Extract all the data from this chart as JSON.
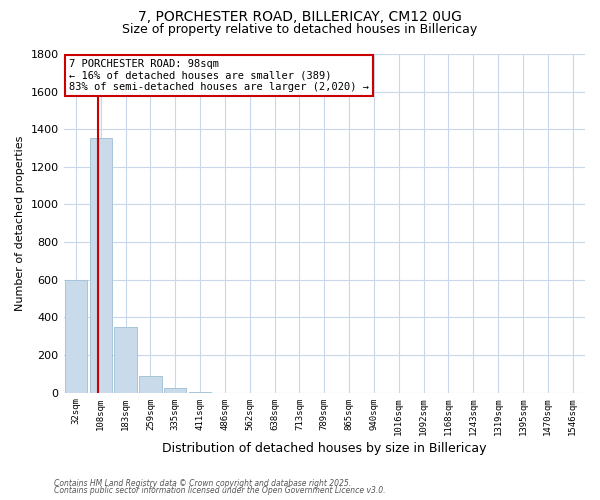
{
  "title_line1": "7, PORCHESTER ROAD, BILLERICAY, CM12 0UG",
  "title_line2": "Size of property relative to detached houses in Billericay",
  "xlabel": "Distribution of detached houses by size in Billericay",
  "ylabel": "Number of detached properties",
  "bar_labels": [
    "32sqm",
    "108sqm",
    "183sqm",
    "259sqm",
    "335sqm",
    "411sqm",
    "486sqm",
    "562sqm",
    "638sqm",
    "713sqm",
    "789sqm",
    "865sqm",
    "940sqm",
    "1016sqm",
    "1092sqm",
    "1168sqm",
    "1243sqm",
    "1319sqm",
    "1395sqm",
    "1470sqm",
    "1546sqm"
  ],
  "bar_values": [
    600,
    1355,
    350,
    90,
    25,
    5,
    0,
    0,
    0,
    0,
    0,
    0,
    0,
    0,
    0,
    0,
    0,
    0,
    0,
    0,
    0
  ],
  "bar_color": "#c9daea",
  "bar_edge_color": "#a8c4d8",
  "ylim": [
    0,
    1800
  ],
  "yticks": [
    0,
    200,
    400,
    600,
    800,
    1000,
    1200,
    1400,
    1600,
    1800
  ],
  "annotation_line1": "7 PORCHESTER ROAD: 98sqm",
  "annotation_line2": "← 16% of detached houses are smaller (389)",
  "annotation_line3": "83% of semi-detached houses are larger (2,020) →",
  "annotation_box_color": "#ffffff",
  "annotation_box_edge_color": "#cc0000",
  "bg_color": "#ffffff",
  "grid_color": "#c8d8ea",
  "footer_line1": "Contains HM Land Registry data © Crown copyright and database right 2025.",
  "footer_line2": "Contains public sector information licensed under the Open Government Licence v3.0."
}
